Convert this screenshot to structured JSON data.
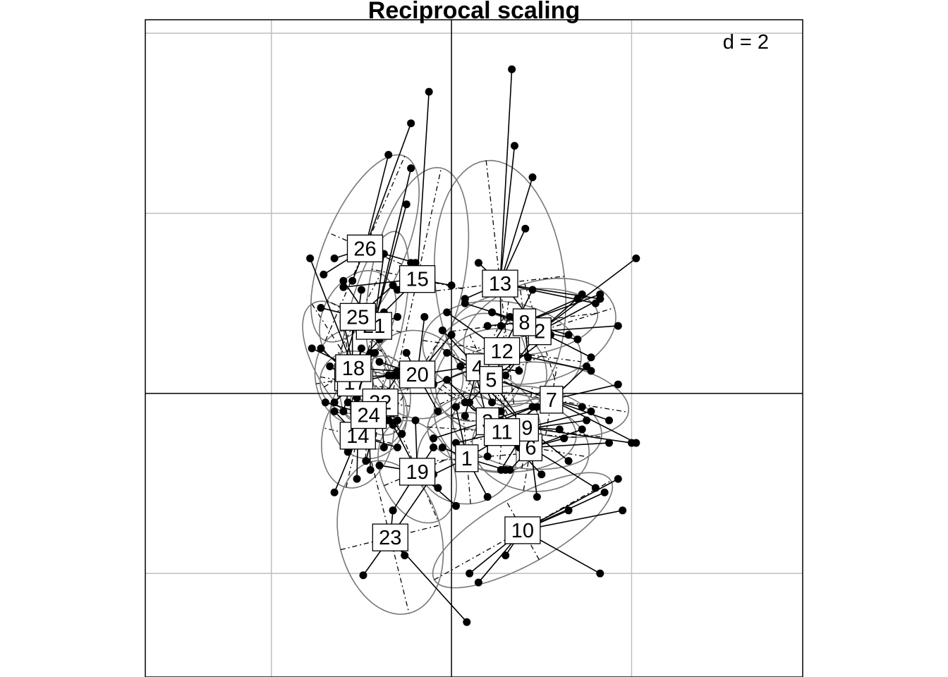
{
  "chart_data": {
    "type": "scatter",
    "title": "Reciprocal scaling",
    "scale_label": "d = 2",
    "grid_step": 2,
    "xlim": [
      -3.4,
      3.9
    ],
    "ylim": [
      -3.15,
      4.15
    ],
    "grid": true,
    "colors": {
      "ellipse": "#777777",
      "grid": "#bebebe",
      "axes": "#000000",
      "points": "#000000"
    },
    "groups": [
      {
        "label": "1",
        "cx": 0.17,
        "cy": -0.72,
        "pts": [
          [
            0.05,
            -0.15
          ],
          [
            0.6,
            -0.85
          ],
          [
            -0.3,
            -0.95
          ],
          [
            0.4,
            -1.15
          ],
          [
            0.7,
            -0.4
          ],
          [
            -0.1,
            -0.6
          ]
        ]
      },
      {
        "label": "2",
        "cx": 0.98,
        "cy": 0.69,
        "pts": [
          [
            2.05,
            1.5
          ],
          [
            1.65,
            1.05
          ],
          [
            1.4,
            0.6
          ],
          [
            0.55,
            1.25
          ],
          [
            0.45,
            0.9
          ],
          [
            1.55,
            0.4
          ],
          [
            0.6,
            0.2
          ],
          [
            1.85,
            0.75
          ],
          [
            1.45,
            1.1
          ]
        ]
      },
      {
        "label": "3",
        "cx": 0.4,
        "cy": -0.31,
        "pts": [
          [
            -0.05,
            0.15
          ],
          [
            0.4,
            -0.7
          ],
          [
            0.9,
            -0.15
          ],
          [
            0.25,
            0.3
          ],
          [
            -0.2,
            -0.5
          ],
          [
            0.75,
            -0.6
          ]
        ]
      },
      {
        "label": "4",
        "cx": 0.29,
        "cy": 0.29,
        "pts": [
          [
            -0.1,
            0.7
          ],
          [
            0.65,
            0.85
          ],
          [
            0.15,
            -0.25
          ],
          [
            0.75,
            0.25
          ],
          [
            -0.2,
            0.1
          ],
          [
            0.45,
            -0.1
          ]
        ]
      },
      {
        "label": "5",
        "cx": 0.44,
        "cy": 0.15,
        "pts": [
          [
            1.1,
            0.65
          ],
          [
            -0.05,
            0.45
          ],
          [
            0.8,
            -0.35
          ],
          [
            0.2,
            -0.1
          ],
          [
            0.6,
            0.45
          ]
        ]
      },
      {
        "label": "6",
        "cx": 0.88,
        "cy": -0.6,
        "pts": [
          [
            1.45,
            -0.4
          ],
          [
            0.65,
            -0.85
          ],
          [
            1.6,
            -1.05
          ],
          [
            0.95,
            -1.15
          ],
          [
            0.55,
            -0.2
          ],
          [
            1.25,
            -0.5
          ],
          [
            1.75,
            -0.55
          ]
        ]
      },
      {
        "label": "7",
        "cx": 1.11,
        "cy": -0.07,
        "pts": [
          [
            2.05,
            -0.55
          ],
          [
            1.75,
            -0.3
          ],
          [
            1.5,
            0.3
          ],
          [
            1.85,
            0.1
          ],
          [
            0.55,
            -0.3
          ],
          [
            0.5,
            0.15
          ],
          [
            1.45,
            -0.15
          ]
        ]
      },
      {
        "label": "8",
        "cx": 0.81,
        "cy": 0.79,
        "pts": [
          [
            1.65,
            1.1
          ],
          [
            0.15,
            1.0
          ],
          [
            1.4,
            1.05
          ],
          [
            0.4,
            0.75
          ],
          [
            0.85,
            0.4
          ],
          [
            1.3,
            0.65
          ]
        ]
      },
      {
        "label": "9",
        "cx": 0.84,
        "cy": -0.38,
        "pts": [
          [
            2.0,
            -0.55
          ],
          [
            1.55,
            -0.2
          ],
          [
            1.3,
            -0.75
          ],
          [
            0.4,
            0.05
          ],
          [
            0.55,
            -0.85
          ],
          [
            1.2,
            -0.4
          ]
        ]
      },
      {
        "label": "10",
        "cx": 0.79,
        "cy": -1.52,
        "pts": [
          [
            1.85,
            -0.95
          ],
          [
            1.65,
            -2.0
          ],
          [
            0.3,
            -2.1
          ],
          [
            0.6,
            -1.8
          ],
          [
            1.3,
            -1.3
          ],
          [
            1.9,
            -1.3
          ],
          [
            0.2,
            -2.0
          ],
          [
            1.7,
            -1.1
          ]
        ]
      },
      {
        "label": "11",
        "cx": 0.56,
        "cy": -0.43,
        "pts": [
          [
            0.15,
            -0.1
          ],
          [
            1.0,
            -0.9
          ],
          [
            1.5,
            -0.3
          ],
          [
            0.05,
            -0.55
          ],
          [
            0.95,
            -0.15
          ]
        ]
      },
      {
        "label": "12",
        "cx": 0.56,
        "cy": 0.47,
        "pts": [
          [
            -0.05,
            0.9
          ],
          [
            1.55,
            0.25
          ],
          [
            0.35,
            0.3
          ],
          [
            0.9,
            1.15
          ],
          [
            0.1,
            0.3
          ]
        ]
      },
      {
        "label": "13",
        "cx": 0.54,
        "cy": 1.22,
        "pts": [
          [
            0.67,
            3.6
          ],
          [
            0.7,
            2.75
          ],
          [
            0.9,
            2.4
          ],
          [
            0.82,
            1.83
          ],
          [
            0.3,
            1.45
          ],
          [
            1.6,
            1.0
          ],
          [
            0.55,
            0.75
          ],
          [
            0.15,
            1.05
          ],
          [
            1.65,
            1.05
          ]
        ]
      },
      {
        "label": "14",
        "cx": -1.04,
        "cy": -0.47,
        "pts": [
          [
            -1.3,
            -0.2
          ],
          [
            -0.6,
            -0.6
          ],
          [
            -1.05,
            -0.95
          ],
          [
            -1.3,
            -1.1
          ],
          [
            -0.7,
            -0.3
          ],
          [
            -1.05,
            -0.05
          ]
        ]
      },
      {
        "label": "15",
        "cx": -0.38,
        "cy": 1.27,
        "pts": [
          [
            -0.25,
            3.35
          ],
          [
            -0.45,
            1.45
          ],
          [
            0.0,
            1.2
          ],
          [
            -0.6,
            1.15
          ],
          [
            -1.2,
            1.18
          ],
          [
            -0.75,
            0.9
          ]
        ]
      },
      {
        "label": "16",
        "cx": -1.1,
        "cy": 0.18,
        "pts": [
          [
            -1.45,
            0.5
          ],
          [
            -1.1,
            0.85
          ],
          [
            -0.65,
            0.2
          ],
          [
            -1.2,
            -0.2
          ],
          [
            -0.85,
            0.45
          ]
        ]
      },
      {
        "label": "17",
        "cx": -1.07,
        "cy": 0.12,
        "pts": [
          [
            -1.35,
            0.3
          ],
          [
            -0.8,
            -0.1
          ],
          [
            -1.0,
            0.5
          ],
          [
            -1.3,
            -0.1
          ],
          [
            -0.7,
            0.2
          ]
        ]
      },
      {
        "label": "18",
        "cx": -1.09,
        "cy": 0.28,
        "pts": [
          [
            -1.57,
            1.5
          ],
          [
            -1.55,
            0.5
          ],
          [
            -0.75,
            0.65
          ],
          [
            -0.9,
            -0.1
          ],
          [
            -1.2,
            0.8
          ],
          [
            -0.6,
            0.25
          ]
        ]
      },
      {
        "label": "19",
        "cx": -0.38,
        "cy": -0.87,
        "pts": [
          [
            -0.65,
            -0.35
          ],
          [
            -0.65,
            -1.3
          ],
          [
            -0.15,
            -1.05
          ],
          [
            0.05,
            -1.25
          ],
          [
            -0.4,
            -0.3
          ],
          [
            -0.2,
            -0.6
          ],
          [
            -0.8,
            -0.8
          ]
        ]
      },
      {
        "label": "20",
        "cx": -0.38,
        "cy": 0.21,
        "pts": [
          [
            0.0,
            0.65
          ],
          [
            -0.8,
            0.35
          ],
          [
            -0.3,
            0.85
          ],
          [
            -0.15,
            -0.2
          ],
          [
            0.25,
            0.3
          ],
          [
            -0.5,
            0.45
          ]
        ]
      },
      {
        "label": "21",
        "cx": -0.86,
        "cy": 0.75,
        "pts": [
          [
            -0.45,
            2.5
          ],
          [
            -0.5,
            2.1
          ],
          [
            -0.75,
            1.55
          ],
          [
            -1.2,
            1.25
          ],
          [
            -0.9,
            0.45
          ],
          [
            -0.6,
            0.85
          ]
        ]
      },
      {
        "label": "22",
        "cx": -0.79,
        "cy": -0.1,
        "pts": [
          [
            -1.15,
            -0.1
          ],
          [
            -0.55,
            -0.45
          ],
          [
            -0.6,
            0.2
          ],
          [
            -0.95,
            -0.75
          ],
          [
            -0.75,
            -0.6
          ]
        ]
      },
      {
        "label": "23",
        "cx": -0.68,
        "cy": -1.6,
        "pts": [
          [
            -0.98,
            -2.02
          ],
          [
            -0.52,
            -1.8
          ],
          [
            0.17,
            -2.54
          ],
          [
            -0.65,
            -1.3
          ],
          [
            -0.2,
            -0.9
          ]
        ]
      },
      {
        "label": "24",
        "cx": -0.92,
        "cy": -0.24,
        "pts": [
          [
            -1.4,
            -0.1
          ],
          [
            -0.9,
            -0.85
          ],
          [
            -0.6,
            -0.3
          ],
          [
            -1.15,
            -0.65
          ],
          [
            -0.75,
            0.0
          ]
        ]
      },
      {
        "label": "25",
        "cx": -1.04,
        "cy": 0.85,
        "pts": [
          [
            -1.45,
            0.95
          ],
          [
            -1.0,
            1.15
          ],
          [
            -0.65,
            1.2
          ],
          [
            -1.2,
            0.3
          ],
          [
            -0.8,
            0.6
          ]
        ]
      },
      {
        "label": "26",
        "cx": -0.96,
        "cy": 1.61,
        "pts": [
          [
            -0.45,
            3.0
          ],
          [
            -0.7,
            2.65
          ],
          [
            -1.42,
            1.32
          ],
          [
            -0.4,
            1.45
          ],
          [
            -1.1,
            1.25
          ],
          [
            -1.3,
            1.5
          ]
        ]
      }
    ]
  }
}
